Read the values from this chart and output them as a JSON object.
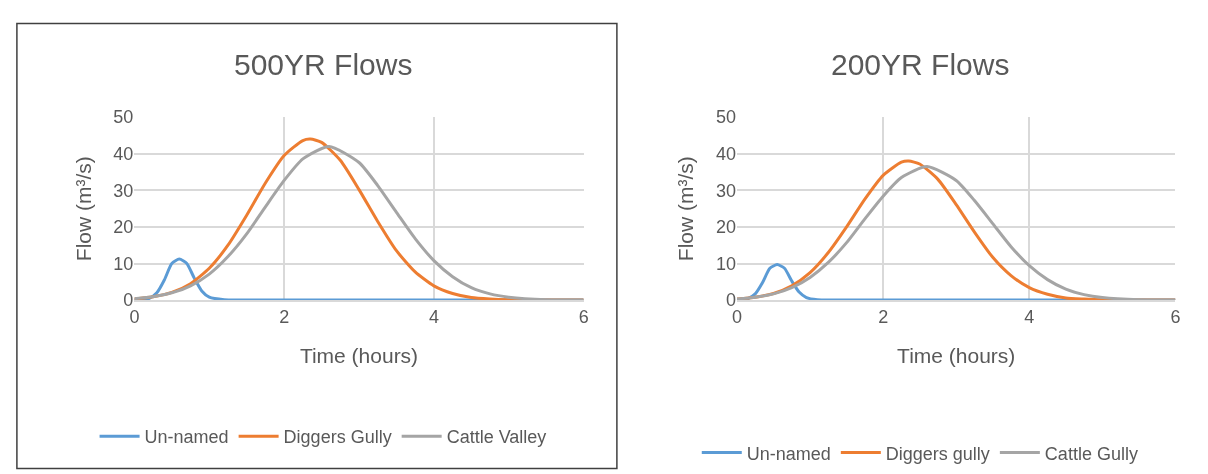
{
  "chart_data": [
    {
      "type": "line",
      "title": "500YR Flows",
      "xlabel": "Time (hours)",
      "ylabel": "Flow (m³/s)",
      "xlim": [
        0,
        6
      ],
      "xticks": [
        0,
        2,
        4,
        6
      ],
      "ylim": [
        0,
        50
      ],
      "yticks": [
        0,
        10,
        20,
        30,
        40,
        50
      ],
      "grid": true,
      "legend": "bottom",
      "marker": "none",
      "line_style": "solid",
      "series": [
        {
          "name": "Un-named",
          "color": "#5b9bd5",
          "x": [
            0,
            0.2,
            0.3,
            0.4,
            0.5,
            0.6,
            0.7,
            0.8,
            0.9,
            1.0,
            1.2,
            1.4,
            6
          ],
          "values": [
            0,
            0.5,
            2,
            5.5,
            10,
            11.2,
            10,
            6,
            2.5,
            0.8,
            0.1,
            0,
            0
          ]
        },
        {
          "name": "Diggers Gully",
          "color": "#ed7d31",
          "x": [
            0,
            0.25,
            0.5,
            0.75,
            1,
            1.25,
            1.5,
            1.75,
            2,
            2.25,
            2.35,
            2.5,
            2.75,
            3,
            3.25,
            3.5,
            3.75,
            4,
            4.25,
            4.5,
            4.75,
            5,
            5.5,
            6
          ],
          "values": [
            0.3,
            0.9,
            2.1,
            4.5,
            8.7,
            15,
            23.2,
            32,
            39.5,
            43.6,
            44,
            43.1,
            38.2,
            30.2,
            21.5,
            13.5,
            7.7,
            3.9,
            1.8,
            0.7,
            0.3,
            0.1,
            0,
            0
          ]
        },
        {
          "name": "Cattle Valley",
          "color": "#a5a5a5",
          "x": [
            0,
            0.25,
            0.5,
            0.75,
            1,
            1.25,
            1.5,
            1.75,
            2,
            2.25,
            2.6,
            3,
            3.25,
            3.5,
            3.75,
            4,
            4.25,
            4.5,
            4.75,
            5,
            5.5,
            6
          ],
          "values": [
            0.4,
            0.9,
            2,
            3.9,
            7.1,
            11.9,
            18.1,
            25.5,
            32.7,
            38.6,
            42,
            37.6,
            31.3,
            24,
            16.8,
            10.8,
            6.4,
            3.4,
            1.7,
            0.8,
            0.1,
            0
          ]
        }
      ]
    },
    {
      "type": "line",
      "title": "200YR Flows",
      "xlabel": "Time (hours)",
      "ylabel": "Flow (m³/s)",
      "xlim": [
        0,
        6
      ],
      "xticks": [
        0,
        2,
        4,
        6
      ],
      "ylim": [
        0,
        50
      ],
      "yticks": [
        0,
        10,
        20,
        30,
        40,
        50
      ],
      "grid": true,
      "legend": "bottom",
      "marker": "none",
      "line_style": "solid",
      "series": [
        {
          "name": "Un-named",
          "color": "#5b9bd5",
          "x": [
            0,
            0.15,
            0.25,
            0.35,
            0.45,
            0.55,
            0.65,
            0.75,
            0.85,
            0.95,
            1.1,
            1.3,
            6
          ],
          "values": [
            0,
            0.4,
            1.7,
            4.8,
            8.7,
            9.7,
            8.7,
            5.2,
            2.2,
            0.7,
            0.1,
            0,
            0
          ]
        },
        {
          "name": "Diggers gully",
          "color": "#ed7d31",
          "x": [
            0,
            0.25,
            0.5,
            0.75,
            1,
            1.25,
            1.5,
            1.75,
            2,
            2.25,
            2.35,
            2.5,
            2.75,
            3,
            3.25,
            3.5,
            3.75,
            4,
            4.25,
            4.5,
            4.75,
            5,
            5.5,
            6
          ],
          "values": [
            0.3,
            0.8,
            1.8,
            3.9,
            7.5,
            13,
            20,
            27.6,
            34.1,
            37.7,
            38,
            37.2,
            33,
            26.1,
            18.6,
            11.7,
            6.7,
            3.4,
            1.6,
            0.6,
            0.3,
            0.1,
            0,
            0
          ]
        },
        {
          "name": "Cattle Gully",
          "color": "#a5a5a5",
          "x": [
            0,
            0.25,
            0.5,
            0.75,
            1,
            1.25,
            1.5,
            1.75,
            2,
            2.25,
            2.6,
            3,
            3.25,
            3.5,
            3.75,
            4,
            4.25,
            4.5,
            4.75,
            5,
            5.5,
            6
          ],
          "values": [
            0.3,
            0.8,
            1.7,
            3.4,
            6.2,
            10.3,
            15.7,
            22.2,
            28.4,
            33.5,
            36.5,
            32.7,
            27.2,
            20.9,
            14.6,
            9.4,
            5.6,
            3,
            1.5,
            0.7,
            0.1,
            0
          ]
        }
      ]
    }
  ]
}
